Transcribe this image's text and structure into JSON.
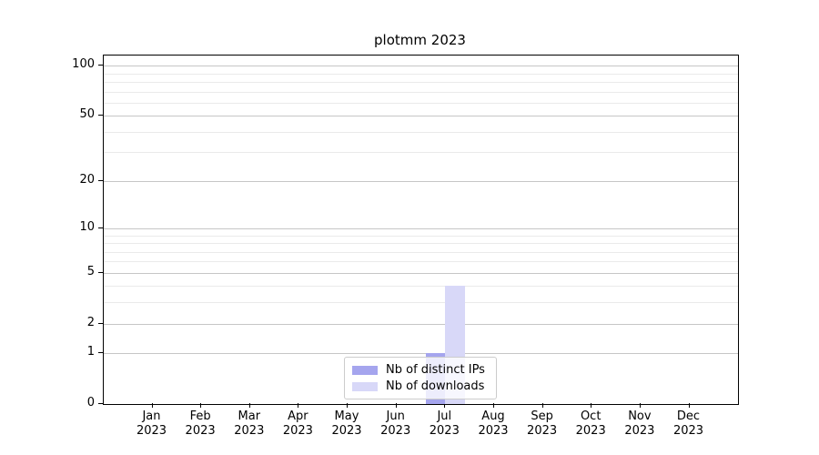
{
  "title": "plotmm 2023",
  "legend": {
    "items": [
      {
        "label": "Nb of distinct IPs",
        "color": "#a5a5ee"
      },
      {
        "label": "Nb of downloads",
        "color": "#d8d8f8"
      }
    ]
  },
  "chart_data": {
    "type": "bar",
    "title": "plotmm 2023",
    "categories": [
      "Jan 2023",
      "Feb 2023",
      "Mar 2023",
      "Apr 2023",
      "May 2023",
      "Jun 2023",
      "Jul 2023",
      "Aug 2023",
      "Sep 2023",
      "Oct 2023",
      "Nov 2023",
      "Dec 2023"
    ],
    "series": [
      {
        "name": "Nb of distinct IPs",
        "color": "#a5a5ee",
        "values": [
          0,
          0,
          0,
          0,
          0,
          0,
          1,
          0,
          0,
          0,
          0,
          0
        ]
      },
      {
        "name": "Nb of downloads",
        "color": "#d8d8f8",
        "values": [
          0,
          0,
          0,
          0,
          0,
          0,
          4,
          0,
          0,
          0,
          0,
          0
        ]
      }
    ],
    "xlabel": "",
    "ylabel": "",
    "yscale": "log1p",
    "ylim": [
      0,
      115
    ],
    "yticks": [
      0,
      1,
      2,
      5,
      10,
      20,
      50,
      100
    ],
    "minor_yticks": [
      3,
      4,
      6,
      7,
      8,
      9,
      30,
      40,
      60,
      70,
      80,
      90
    ],
    "grid": {
      "axis": "y",
      "which": "both",
      "major_color": "#c6c6c6",
      "minor_color": "#eaeaea"
    },
    "legend_position": "lower center",
    "bar_layout": "paired side-by-side per month, distinct IPs left, downloads right"
  }
}
